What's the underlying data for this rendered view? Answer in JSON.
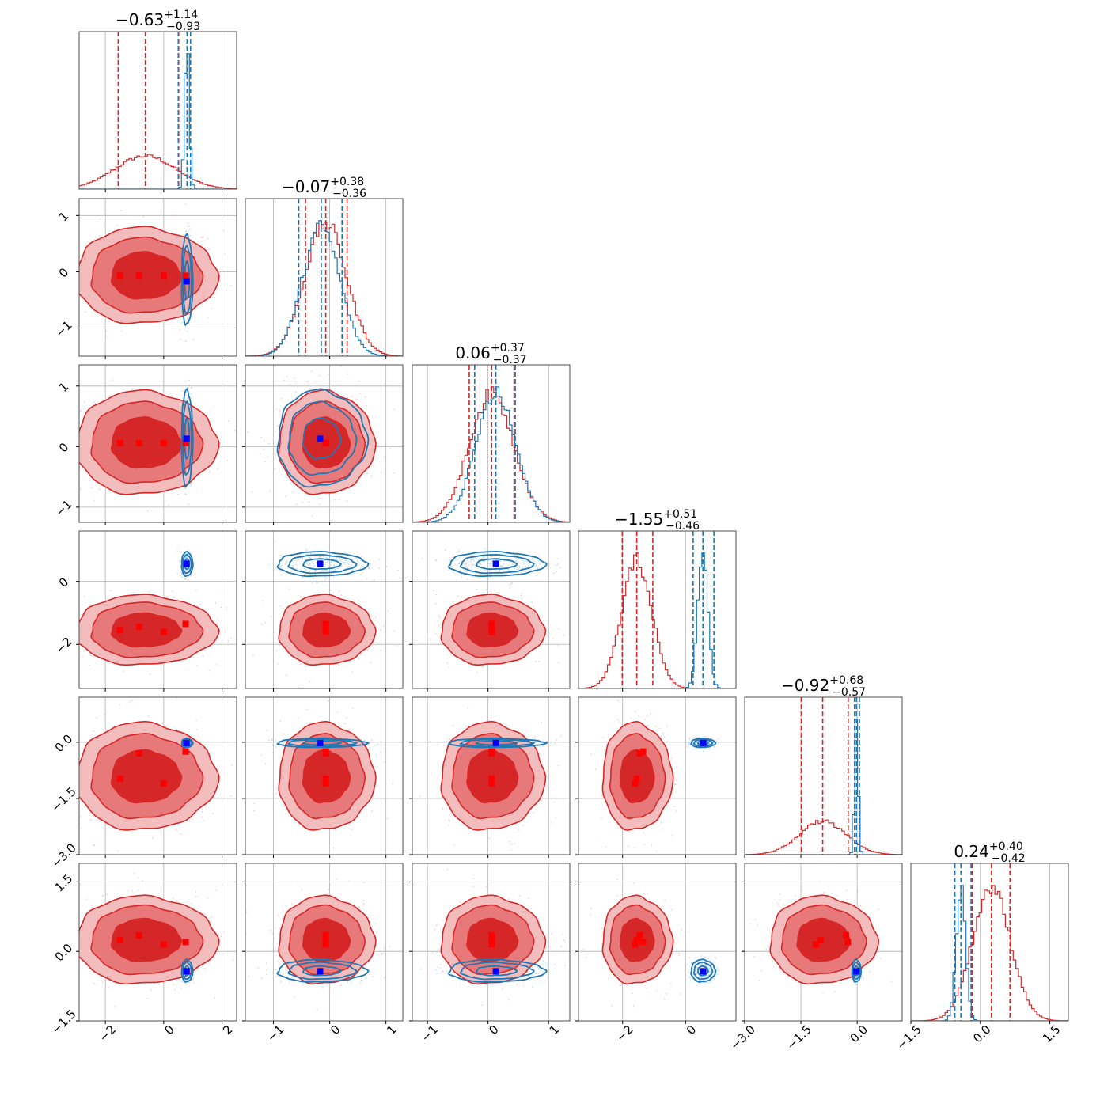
{
  "colors": {
    "red": "#d62728",
    "red_mid": "#e8797a",
    "red_light": "#f3bcbd",
    "blue": "#1f77b4",
    "marker_red": "#ff0000",
    "marker_blue": "#0000ff",
    "grid": "#b0b0b0"
  },
  "chart_data": {
    "type": "corner",
    "n_params": 6,
    "titles": [
      {
        "value": "−0.63",
        "plus": "+1.14",
        "minus": "−0.93"
      },
      {
        "value": "−0.07",
        "plus": "+0.38",
        "minus": "−0.36"
      },
      {
        "value": "0.06",
        "plus": "+0.37",
        "minus": "−0.37"
      },
      {
        "value": "−1.55",
        "plus": "+0.51",
        "minus": "−0.46"
      },
      {
        "value": "−0.92",
        "plus": "+0.68",
        "minus": "−0.57"
      },
      {
        "value": "0.24",
        "plus": "+0.40",
        "minus": "−0.42"
      }
    ],
    "ranges": [
      [
        -2.9,
        2.5
      ],
      [
        -1.5,
        1.3
      ],
      [
        -1.25,
        1.35
      ],
      [
        -3.4,
        1.6
      ],
      [
        -3.0,
        1.2
      ],
      [
        -1.5,
        1.9
      ]
    ],
    "xticks": [
      [
        -2,
        0,
        2
      ],
      [
        -1,
        0,
        1
      ],
      [
        -1,
        0,
        1
      ],
      [
        -2,
        0
      ],
      [
        -3.0,
        -1.5,
        0.0
      ],
      [
        -1.5,
        0.0,
        1.5
      ]
    ],
    "xtick_labels": [
      [
        "−2",
        "0",
        "2"
      ],
      [
        "−1",
        "0",
        "1"
      ],
      [
        "−1",
        "0",
        "1"
      ],
      [
        "−2",
        "0"
      ],
      [
        "−3.0",
        "−1.5",
        "0.0"
      ],
      [
        "−1.5",
        "0.0",
        "1.5"
      ]
    ],
    "yticks": [
      [],
      [
        -1,
        0,
        1
      ],
      [
        -1,
        0,
        1
      ],
      [
        -2,
        0
      ],
      [
        -3.0,
        -1.5,
        0.0
      ],
      [
        -1.5,
        0.0,
        1.5
      ]
    ],
    "ytick_labels": [
      [],
      [
        "−1",
        "0",
        "1"
      ],
      [
        "−1",
        "0",
        "1"
      ],
      [
        "−2",
        "0"
      ],
      [
        "−3.0",
        "−1.5",
        "0.0"
      ],
      [
        "−1.5",
        "0.0",
        "1.5"
      ]
    ],
    "series": [
      {
        "key": "red",
        "mean": [
          -0.63,
          -0.07,
          0.06,
          -1.55,
          -0.92,
          0.24
        ],
        "sigma": [
          1.05,
          0.37,
          0.37,
          0.48,
          0.62,
          0.41
        ],
        "quantiles": [
          [
            -1.56,
            -0.63,
            0.51
          ],
          [
            -0.43,
            -0.07,
            0.31
          ],
          [
            -0.31,
            0.06,
            0.43
          ],
          [
            -2.01,
            -1.55,
            -1.04
          ],
          [
            -1.49,
            -0.92,
            -0.24
          ],
          [
            -0.18,
            0.24,
            0.64
          ]
        ],
        "markers": [
          [
            -1.5,
            -0.07,
            0.06,
            -1.55,
            -0.98,
            0.24
          ],
          [
            -0.85,
            -0.07,
            0.06,
            -1.45,
            -0.3,
            0.35
          ],
          [
            0.0,
            -0.07,
            0.06,
            -1.6,
            -1.1,
            0.15
          ],
          [
            0.75,
            -0.07,
            0.06,
            -1.35,
            -0.25,
            0.2
          ]
        ]
      },
      {
        "key": "blue",
        "mean": [
          0.8,
          -0.15,
          0.13,
          0.55,
          -0.02,
          -0.42
        ],
        "sigma": [
          0.08,
          0.33,
          0.33,
          0.16,
          0.05,
          0.1
        ],
        "quantiles": [
          [
            0.5,
            0.8,
            0.92
          ],
          [
            -0.55,
            -0.15,
            0.22
          ],
          [
            -0.22,
            0.13,
            0.45
          ],
          [
            0.24,
            0.55,
            0.9
          ],
          [
            -0.07,
            -0.02,
            0.06
          ],
          [
            -0.55,
            -0.42,
            -0.2
          ]
        ],
        "markers": [
          [
            0.78,
            -0.17,
            0.13,
            0.56,
            -0.02,
            -0.43
          ]
        ]
      }
    ],
    "grid": true
  }
}
